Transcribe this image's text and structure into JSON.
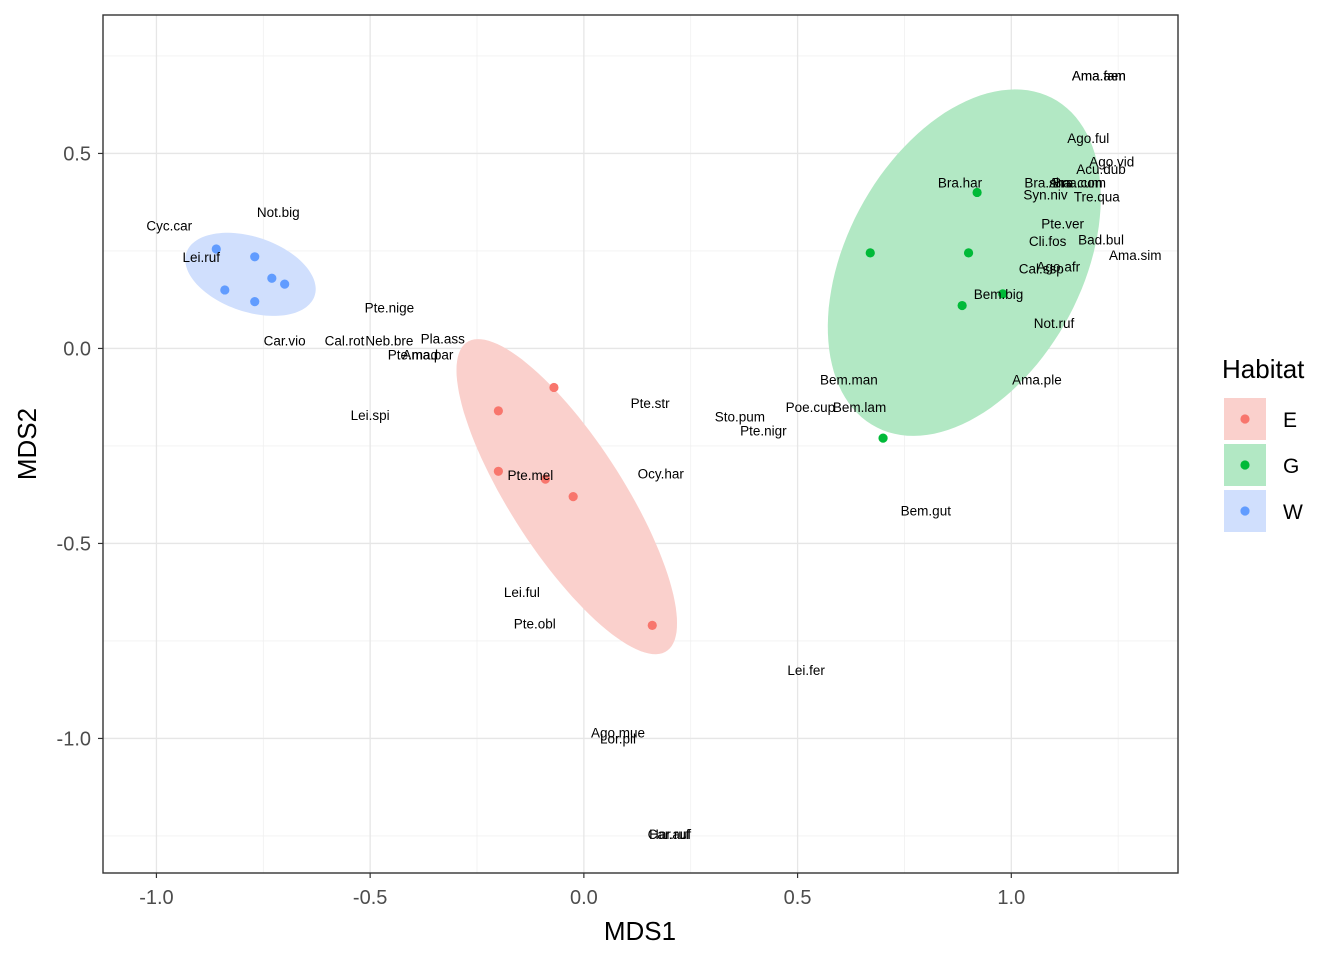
{
  "chart_data": {
    "type": "scatter",
    "xlabel": "MDS1",
    "ylabel": "MDS2",
    "xlim": [
      -1.125,
      1.39
    ],
    "ylim": [
      -1.345,
      0.855
    ],
    "x_ticks": [
      -1.0,
      -0.5,
      0.0,
      0.5,
      1.0
    ],
    "x_tick_labels": [
      "-1.0",
      "-0.5",
      "0.0",
      "0.5",
      "1.0"
    ],
    "y_ticks": [
      0.5,
      0.0,
      -0.5,
      -1.0
    ],
    "y_tick_labels": [
      "0.5",
      "0.0",
      "-0.5",
      "-1.0"
    ],
    "grid": true,
    "legend": {
      "title": "Habitat",
      "position": "right",
      "items": [
        {
          "label": "E",
          "color": "#F8766D",
          "fill": "#FAD0CC"
        },
        {
          "label": "G",
          "color": "#00BA38",
          "fill": "#B2E8C4"
        },
        {
          "label": "W",
          "color": "#619CFF",
          "fill": "#D0DFFD"
        }
      ]
    },
    "ellipses": [
      {
        "group": "E",
        "center": [
          -0.04,
          -0.38
        ],
        "semi_major": 0.46,
        "semi_minor": 0.135,
        "angle_deg": -60,
        "color": "#FAD0CC"
      },
      {
        "group": "G",
        "center": [
          0.89,
          0.22
        ],
        "semi_major": 0.47,
        "semi_minor": 0.28,
        "angle_deg": 66,
        "color": "#B2E8C4"
      },
      {
        "group": "W",
        "center": [
          -0.78,
          0.19
        ],
        "semi_major": 0.16,
        "semi_minor": 0.095,
        "angle_deg": -22,
        "color": "#D0DFFD"
      }
    ],
    "sites": [
      {
        "group": "E",
        "x": -0.2,
        "y": -0.16
      },
      {
        "group": "E",
        "x": -0.2,
        "y": -0.315
      },
      {
        "group": "E",
        "x": -0.07,
        "y": -0.1
      },
      {
        "group": "E",
        "x": -0.09,
        "y": -0.335
      },
      {
        "group": "E",
        "x": -0.025,
        "y": -0.38
      },
      {
        "group": "E",
        "x": 0.16,
        "y": -0.71
      },
      {
        "group": "G",
        "x": 0.67,
        "y": 0.245
      },
      {
        "group": "G",
        "x": 0.9,
        "y": 0.245
      },
      {
        "group": "G",
        "x": 0.92,
        "y": 0.4
      },
      {
        "group": "G",
        "x": 0.885,
        "y": 0.11
      },
      {
        "group": "G",
        "x": 0.98,
        "y": 0.14
      },
      {
        "group": "G",
        "x": 0.7,
        "y": -0.23
      },
      {
        "group": "W",
        "x": -0.86,
        "y": 0.255
      },
      {
        "group": "W",
        "x": -0.77,
        "y": 0.235
      },
      {
        "group": "W",
        "x": -0.73,
        "y": 0.18
      },
      {
        "group": "W",
        "x": -0.7,
        "y": 0.165
      },
      {
        "group": "W",
        "x": -0.84,
        "y": 0.15
      },
      {
        "group": "W",
        "x": -0.77,
        "y": 0.12
      }
    ],
    "species": [
      {
        "label": "Ama.fam",
        "x": 1.205,
        "y": 0.7
      },
      {
        "label": "Ama.aen",
        "x": 1.205,
        "y": 0.7
      },
      {
        "label": "Ago.ful",
        "x": 1.18,
        "y": 0.54
      },
      {
        "label": "Ago.vid",
        "x": 1.235,
        "y": 0.48
      },
      {
        "label": "Acu.dub",
        "x": 1.21,
        "y": 0.46
      },
      {
        "label": "Bra.har",
        "x": 0.88,
        "y": 0.425
      },
      {
        "label": "Bra.sha",
        "x": 1.085,
        "y": 0.425
      },
      {
        "label": "Ama.com",
        "x": 1.155,
        "y": 0.425
      },
      {
        "label": "Bra.cum",
        "x": 1.155,
        "y": 0.425
      },
      {
        "label": "Syn.niv",
        "x": 1.08,
        "y": 0.395
      },
      {
        "label": "Tre.qua",
        "x": 1.2,
        "y": 0.39
      },
      {
        "label": "Pte.ver",
        "x": 1.12,
        "y": 0.32
      },
      {
        "label": "Cli.fos",
        "x": 1.085,
        "y": 0.275
      },
      {
        "label": "Bad.bul",
        "x": 1.21,
        "y": 0.28
      },
      {
        "label": "Ama.sim",
        "x": 1.29,
        "y": 0.24
      },
      {
        "label": "Cal.ssp",
        "x": 1.07,
        "y": 0.205
      },
      {
        "label": "Ago.afr",
        "x": 1.11,
        "y": 0.21
      },
      {
        "label": "Bem.big",
        "x": 0.97,
        "y": 0.14
      },
      {
        "label": "Not.ruf",
        "x": 1.1,
        "y": 0.065
      },
      {
        "label": "Bem.man",
        "x": 0.62,
        "y": -0.08
      },
      {
        "label": "Ama.ple",
        "x": 1.06,
        "y": -0.08
      },
      {
        "label": "Poe.cup",
        "x": 0.53,
        "y": -0.15
      },
      {
        "label": "Bem.lam",
        "x": 0.645,
        "y": -0.15
      },
      {
        "label": "Sto.pum",
        "x": 0.365,
        "y": -0.175
      },
      {
        "label": "Pte.nigr",
        "x": 0.42,
        "y": -0.21
      },
      {
        "label": "Bem.gut",
        "x": 0.8,
        "y": -0.415
      },
      {
        "label": "Cyc.car",
        "x": -0.97,
        "y": 0.315
      },
      {
        "label": "Not.big",
        "x": -0.715,
        "y": 0.35
      },
      {
        "label": "Lei.ruf",
        "x": -0.895,
        "y": 0.235
      },
      {
        "label": "Car.vio",
        "x": -0.7,
        "y": 0.02
      },
      {
        "label": "Pte.nige",
        "x": -0.455,
        "y": 0.105
      },
      {
        "label": "Cal.rot",
        "x": -0.56,
        "y": 0.02
      },
      {
        "label": "Neb.bre",
        "x": -0.455,
        "y": 0.02
      },
      {
        "label": "Pla.ass",
        "x": -0.33,
        "y": 0.025
      },
      {
        "label": "Pte.mad",
        "x": -0.4,
        "y": -0.015
      },
      {
        "label": "Ama.par",
        "x": -0.365,
        "y": -0.015
      },
      {
        "label": "Lei.spi",
        "x": -0.5,
        "y": -0.17
      },
      {
        "label": "Pte.str",
        "x": 0.155,
        "y": -0.14
      },
      {
        "label": "Pte.mel",
        "x": -0.125,
        "y": -0.325
      },
      {
        "label": "Ocy.har",
        "x": 0.18,
        "y": -0.32
      },
      {
        "label": "Lei.ful",
        "x": -0.145,
        "y": -0.625
      },
      {
        "label": "Pte.obl",
        "x": -0.115,
        "y": -0.705
      },
      {
        "label": "Lei.fer",
        "x": 0.52,
        "y": -0.825
      },
      {
        "label": "Ago.mue",
        "x": 0.08,
        "y": -0.985
      },
      {
        "label": "Lor.pil",
        "x": 0.08,
        "y": -1.0
      },
      {
        "label": "Har.ruf",
        "x": 0.2,
        "y": -1.245
      },
      {
        "label": "Car.auf",
        "x": 0.2,
        "y": -1.245
      }
    ]
  }
}
